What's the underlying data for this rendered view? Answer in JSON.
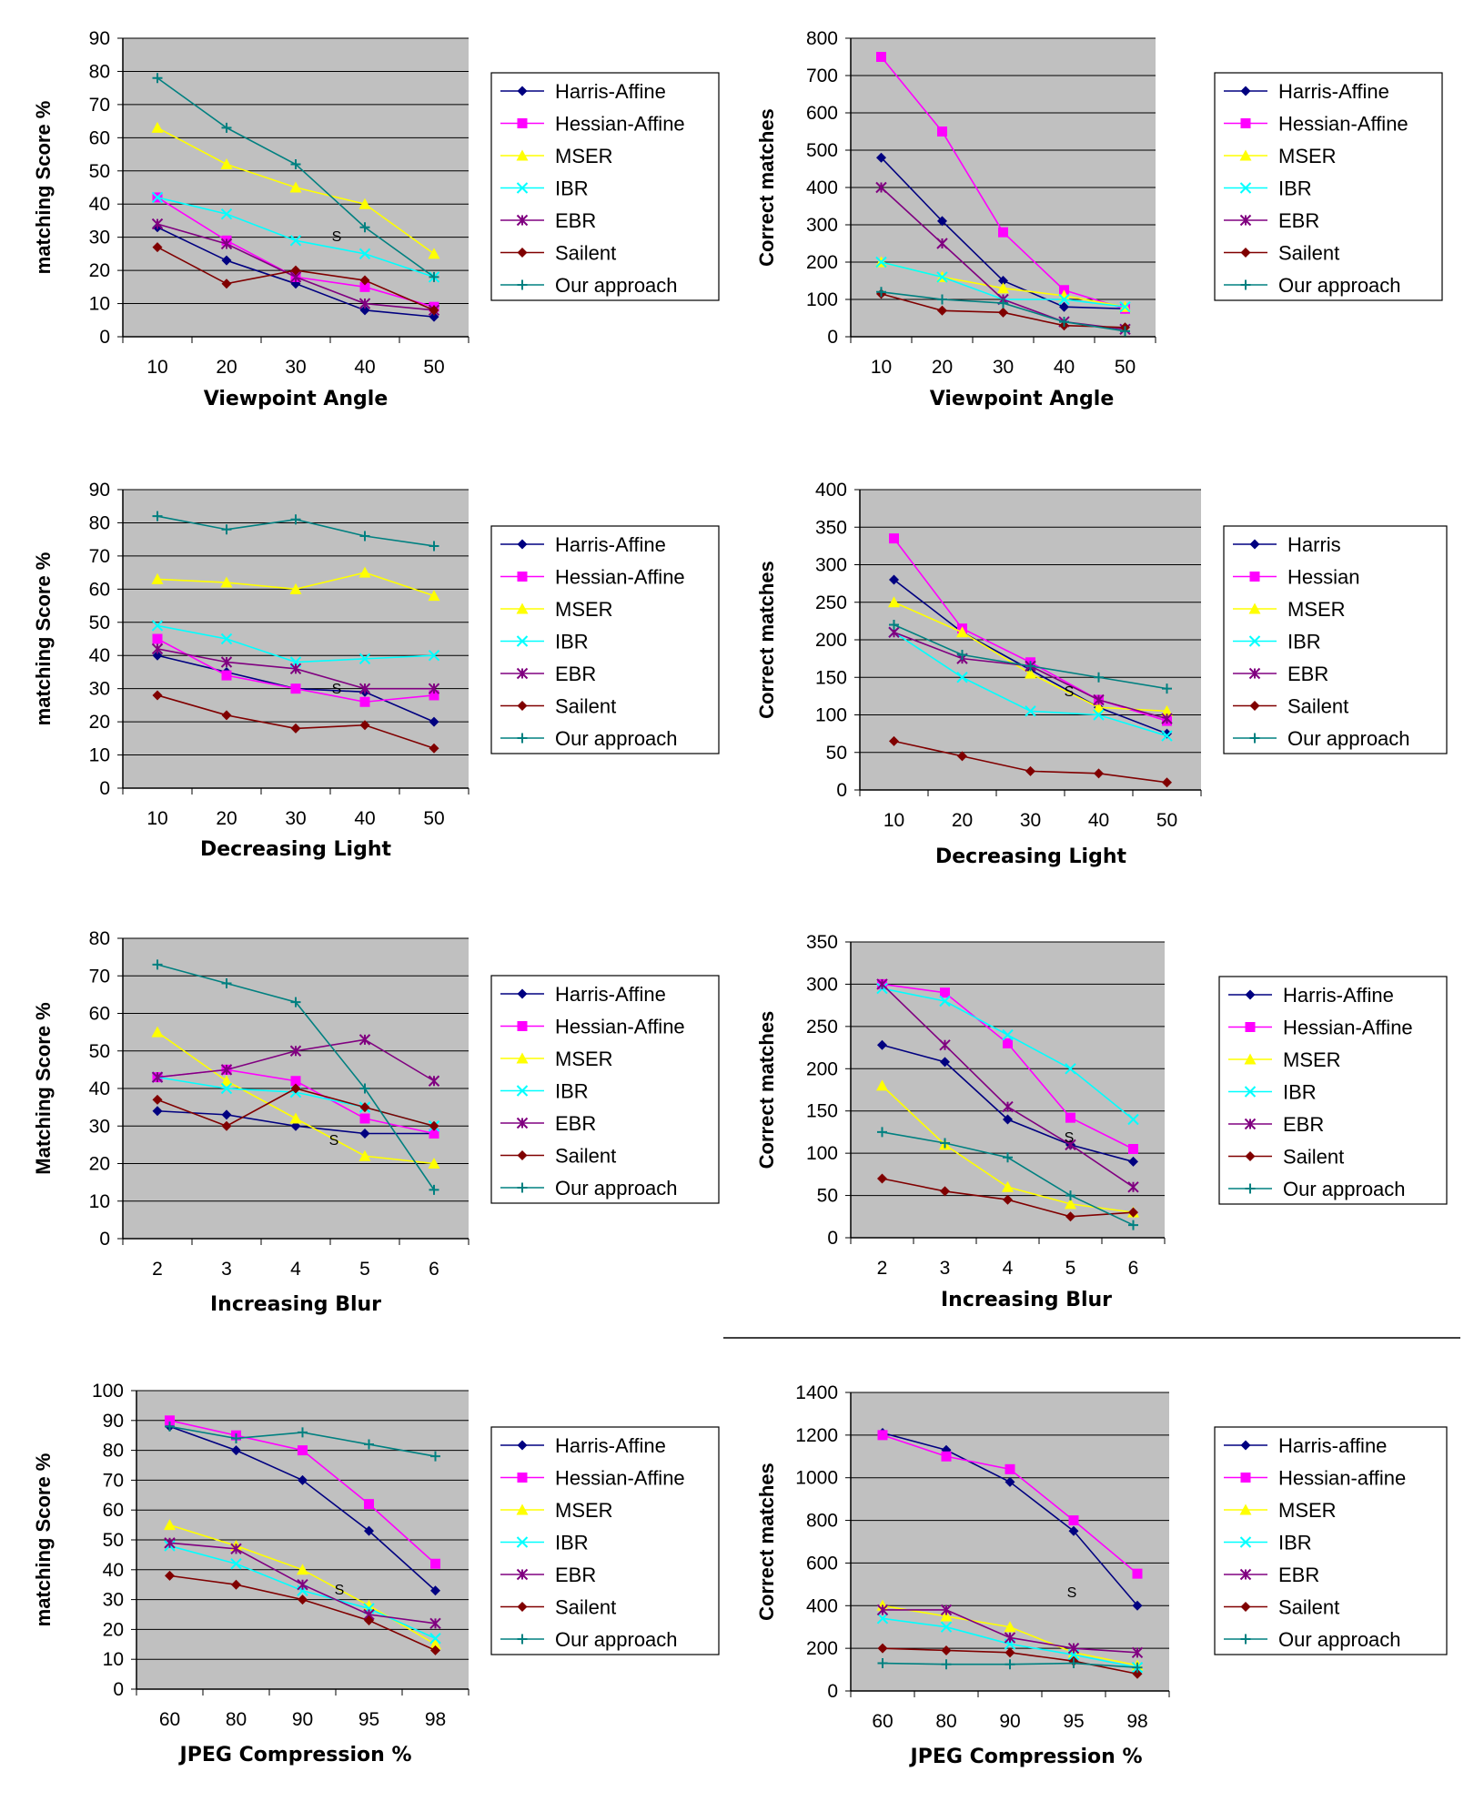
{
  "colors": {
    "Harris-Affine": "#000080",
    "Hessian-Affine": "#ff00ff",
    "MSER": "#ffff00",
    "IBR": "#00ffff",
    "EBR": "#800080",
    "Sailent": "#800000",
    "Our approach": "#008080",
    "plot_background": "#c0c0c0",
    "gridline": "#000000"
  },
  "markers": {
    "Harris-Affine": "diamond",
    "Hessian-Affine": "square",
    "MSER": "triangle",
    "IBR": "x-cross",
    "EBR": "star",
    "Sailent": "diamond",
    "Our approach": "plus"
  },
  "chart_data": [
    {
      "type": "line",
      "xlabel": "Viewpoint Angle",
      "ylabel": "matching Score %",
      "categories": [
        "10",
        "20",
        "30",
        "40",
        "50"
      ],
      "ylim": [
        0,
        90
      ],
      "ystep": 10,
      "grid": true,
      "legend": "right",
      "annotation": "S",
      "series": [
        {
          "name": "Harris-Affine",
          "values": [
            33,
            23,
            16,
            8,
            6
          ]
        },
        {
          "name": "Hessian-Affine",
          "values": [
            42,
            29,
            18,
            15,
            9
          ]
        },
        {
          "name": "MSER",
          "values": [
            63,
            52,
            45,
            40,
            25
          ]
        },
        {
          "name": "IBR",
          "values": [
            42,
            37,
            29,
            25,
            18
          ]
        },
        {
          "name": "EBR",
          "values": [
            34,
            28,
            18,
            10,
            8
          ]
        },
        {
          "name": "Sailent",
          "values": [
            27,
            16,
            20,
            17,
            8
          ]
        },
        {
          "name": "Our approach",
          "values": [
            78,
            63,
            52,
            33,
            18
          ]
        }
      ]
    },
    {
      "type": "line",
      "xlabel": "Viewpoint Angle",
      "ylabel": "Correct matches",
      "categories": [
        "10",
        "20",
        "30",
        "40",
        "50"
      ],
      "ylim": [
        0,
        800
      ],
      "ystep": 100,
      "grid": true,
      "legend": "right",
      "series": [
        {
          "name": "Harris-Affine",
          "values": [
            480,
            310,
            150,
            80,
            75
          ]
        },
        {
          "name": "Hessian-Affine",
          "values": [
            750,
            550,
            280,
            125,
            75
          ]
        },
        {
          "name": "MSER",
          "values": [
            200,
            160,
            130,
            110,
            80
          ]
        },
        {
          "name": "IBR",
          "values": [
            200,
            160,
            100,
            100,
            80
          ]
        },
        {
          "name": "EBR",
          "values": [
            400,
            250,
            100,
            40,
            20
          ]
        },
        {
          "name": "Sailent",
          "values": [
            115,
            70,
            65,
            30,
            25
          ]
        },
        {
          "name": "Our approach",
          "values": [
            120,
            100,
            90,
            40,
            15
          ]
        }
      ]
    },
    {
      "type": "line",
      "xlabel": "Decreasing Light",
      "ylabel": "matching Score %",
      "categories": [
        "10",
        "20",
        "30",
        "40",
        "50"
      ],
      "ylim": [
        0,
        90
      ],
      "ystep": 10,
      "grid": true,
      "legend": "right",
      "annotation": "S",
      "series": [
        {
          "name": "Harris-Affine",
          "values": [
            40,
            35,
            30,
            29,
            20
          ]
        },
        {
          "name": "Hessian-Affine",
          "values": [
            45,
            34,
            30,
            26,
            28
          ]
        },
        {
          "name": "MSER",
          "values": [
            63,
            62,
            60,
            65,
            58
          ]
        },
        {
          "name": "IBR",
          "values": [
            49,
            45,
            38,
            39,
            40
          ]
        },
        {
          "name": "EBR",
          "values": [
            42,
            38,
            36,
            30,
            30
          ]
        },
        {
          "name": "Sailent",
          "values": [
            28,
            22,
            18,
            19,
            12
          ]
        },
        {
          "name": "Our approach",
          "values": [
            82,
            78,
            81,
            76,
            73
          ]
        }
      ]
    },
    {
      "type": "line",
      "xlabel": "Decreasing Light",
      "ylabel": "Correct matches",
      "categories": [
        "10",
        "20",
        "30",
        "40",
        "50"
      ],
      "ylim": [
        0,
        400
      ],
      "ystep": 50,
      "grid": true,
      "legend": "right",
      "annotation": "S",
      "legend_labels": [
        "Harris",
        "Hessian",
        "MSER",
        "IBR",
        "EBR",
        "Sailent",
        "Our approach"
      ],
      "series": [
        {
          "name": "Harris-Affine",
          "values": [
            280,
            210,
            160,
            110,
            75
          ]
        },
        {
          "name": "Hessian-Affine",
          "values": [
            335,
            215,
            170,
            120,
            92
          ]
        },
        {
          "name": "MSER",
          "values": [
            250,
            210,
            155,
            110,
            105
          ]
        },
        {
          "name": "IBR",
          "values": [
            210,
            150,
            105,
            100,
            72
          ]
        },
        {
          "name": "EBR",
          "values": [
            210,
            175,
            165,
            120,
            95
          ]
        },
        {
          "name": "Sailent",
          "values": [
            65,
            45,
            25,
            22,
            10
          ]
        },
        {
          "name": "Our approach",
          "values": [
            220,
            180,
            165,
            150,
            135
          ]
        }
      ]
    },
    {
      "type": "line",
      "xlabel": "Increasing Blur",
      "ylabel": "Matching Score %",
      "categories": [
        "2",
        "3",
        "4",
        "5",
        "6"
      ],
      "ylim": [
        0,
        80
      ],
      "ystep": 10,
      "grid": true,
      "legend": "right",
      "annotation": "S",
      "series": [
        {
          "name": "Harris-Affine",
          "values": [
            34,
            33,
            30,
            28,
            28
          ]
        },
        {
          "name": "Hessian-Affine",
          "values": [
            43,
            45,
            42,
            32,
            28
          ]
        },
        {
          "name": "MSER",
          "values": [
            55,
            42,
            32,
            22,
            20
          ]
        },
        {
          "name": "IBR",
          "values": [
            43,
            40,
            39,
            35,
            30
          ]
        },
        {
          "name": "EBR",
          "values": [
            43,
            45,
            50,
            53,
            42
          ]
        },
        {
          "name": "Sailent",
          "values": [
            37,
            30,
            40,
            35,
            30
          ]
        },
        {
          "name": "Our approach",
          "values": [
            73,
            68,
            63,
            40,
            13
          ]
        }
      ]
    },
    {
      "type": "line",
      "xlabel": "Increasing Blur",
      "ylabel": "Correct matches",
      "categories": [
        "2",
        "3",
        "4",
        "5",
        "6"
      ],
      "ylim": [
        0,
        350
      ],
      "ystep": 50,
      "grid": true,
      "legend": "right",
      "annotation": "S",
      "series": [
        {
          "name": "Harris-Affine",
          "values": [
            228,
            208,
            140,
            110,
            90
          ]
        },
        {
          "name": "Hessian-Affine",
          "values": [
            300,
            290,
            230,
            142,
            105
          ]
        },
        {
          "name": "MSER",
          "values": [
            180,
            110,
            60,
            40,
            30
          ]
        },
        {
          "name": "IBR",
          "values": [
            295,
            280,
            240,
            200,
            140
          ]
        },
        {
          "name": "EBR",
          "values": [
            300,
            228,
            155,
            110,
            60
          ]
        },
        {
          "name": "Sailent",
          "values": [
            70,
            55,
            45,
            25,
            30
          ]
        },
        {
          "name": "Our approach",
          "values": [
            125,
            112,
            95,
            50,
            15
          ]
        }
      ]
    },
    {
      "type": "line",
      "xlabel": "JPEG Compression %",
      "ylabel": "matching Score %",
      "categories": [
        "60",
        "80",
        "90",
        "95",
        "98"
      ],
      "ylim": [
        0,
        100
      ],
      "ystep": 10,
      "grid": true,
      "legend": "right",
      "annotation": "S",
      "series": [
        {
          "name": "Harris-Affine",
          "values": [
            88,
            80,
            70,
            53,
            33
          ]
        },
        {
          "name": "Hessian-Affine",
          "values": [
            90,
            85,
            80,
            62,
            42
          ]
        },
        {
          "name": "MSER",
          "values": [
            55,
            48,
            40,
            28,
            15
          ]
        },
        {
          "name": "IBR",
          "values": [
            48,
            42,
            33,
            27,
            17
          ]
        },
        {
          "name": "EBR",
          "values": [
            49,
            47,
            35,
            25,
            22
          ]
        },
        {
          "name": "Sailent",
          "values": [
            38,
            35,
            30,
            23,
            13
          ]
        },
        {
          "name": "Our approach",
          "values": [
            88,
            84,
            86,
            82,
            78
          ]
        }
      ]
    },
    {
      "type": "line",
      "xlabel": "JPEG Compression %",
      "ylabel": "Correct matches",
      "categories": [
        "60",
        "80",
        "90",
        "95",
        "98"
      ],
      "ylim": [
        0,
        1400
      ],
      "ystep": 200,
      "grid": true,
      "legend": "right",
      "annotation": "S",
      "legend_labels": [
        "Harris-affine",
        "Hessian-affine",
        "MSER",
        "IBR",
        "EBR",
        "Sailent",
        "Our approach"
      ],
      "series": [
        {
          "name": "Harris-Affine",
          "values": [
            1210,
            1130,
            980,
            750,
            400
          ]
        },
        {
          "name": "Hessian-Affine",
          "values": [
            1200,
            1100,
            1040,
            800,
            550
          ]
        },
        {
          "name": "MSER",
          "values": [
            400,
            350,
            300,
            180,
            120
          ]
        },
        {
          "name": "IBR",
          "values": [
            340,
            300,
            220,
            170,
            110
          ]
        },
        {
          "name": "EBR",
          "values": [
            380,
            380,
            250,
            200,
            180
          ]
        },
        {
          "name": "Sailent",
          "values": [
            200,
            190,
            180,
            140,
            80
          ]
        },
        {
          "name": "Our approach",
          "values": [
            130,
            125,
            125,
            130,
            110
          ]
        }
      ]
    }
  ]
}
